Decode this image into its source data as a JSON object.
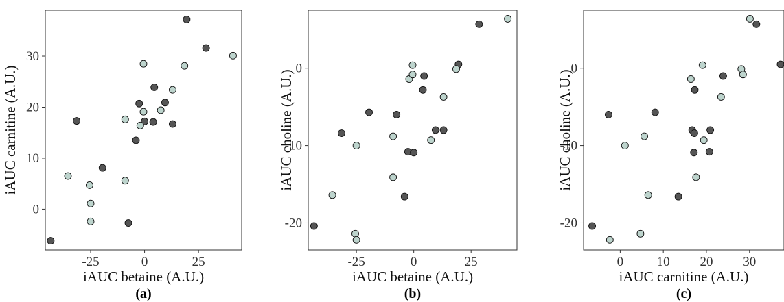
{
  "chart_data": [
    {
      "type": "scatter",
      "panel_label": "(a)",
      "xlabel": "iAUC betaine (A.U.)",
      "ylabel": "iAUC carnitine (A.U.)",
      "xlim": [
        -46,
        45
      ],
      "ylim": [
        -8,
        39
      ],
      "xticks": [
        -25,
        0,
        25
      ],
      "yticks": [
        0,
        10,
        20,
        30
      ],
      "xtick_labels": [
        "-25",
        "0",
        "25"
      ],
      "ytick_labels": [
        "0",
        "10",
        "20",
        "30"
      ],
      "grid": false,
      "legend": "none",
      "series": [
        {
          "color": "#555555",
          "points": [
            [
              -43.5,
              -6.2
            ],
            [
              -31.5,
              17.3
            ],
            [
              -19.5,
              8.1
            ],
            [
              -7.5,
              -2.7
            ],
            [
              -4,
              13.5
            ],
            [
              -2.5,
              20.7
            ],
            [
              0,
              17.2
            ],
            [
              4,
              17.1
            ],
            [
              4.5,
              23.9
            ],
            [
              9.5,
              20.9
            ],
            [
              13,
              16.7
            ],
            [
              19.5,
              37.2
            ],
            [
              28.5,
              31.6
            ]
          ]
        },
        {
          "color": "#bdd4cd",
          "points": [
            [
              -35.5,
              6.5
            ],
            [
              -25.5,
              4.7
            ],
            [
              -25,
              1.1
            ],
            [
              -25,
              -2.4
            ],
            [
              -9,
              5.6
            ],
            [
              -9,
              17.6
            ],
            [
              -2,
              16.4
            ],
            [
              -0.5,
              28.5
            ],
            [
              -0.5,
              19.1
            ],
            [
              7.5,
              19.4
            ],
            [
              13,
              23.4
            ],
            [
              18.5,
              28.1
            ],
            [
              41,
              30.1
            ]
          ]
        }
      ]
    },
    {
      "type": "scatter",
      "panel_label": "(b)",
      "xlabel": "iAUC betaine (A.U.)",
      "ylabel": "iAUC choline (A.U.)",
      "xlim": [
        -46,
        45
      ],
      "ylim": [
        -23.5,
        7.5
      ],
      "xticks": [
        -25,
        0,
        25
      ],
      "yticks": [
        -20,
        -10,
        0
      ],
      "xtick_labels": [
        "-25",
        "0",
        "25"
      ],
      "ytick_labels": [
        "-20",
        "-10",
        "0"
      ],
      "grid": false,
      "legend": "none",
      "series": [
        {
          "color": "#555555",
          "points": [
            [
              -43.5,
              -20.4
            ],
            [
              -31.5,
              -8.4
            ],
            [
              -19.5,
              -5.7
            ],
            [
              -7.5,
              -6
            ],
            [
              -4,
              -16.6
            ],
            [
              -2.5,
              -10.8
            ],
            [
              0,
              -10.9
            ],
            [
              4,
              -2.8
            ],
            [
              4.5,
              -1
            ],
            [
              9.5,
              -8
            ],
            [
              13,
              -8
            ],
            [
              19.5,
              0.5
            ],
            [
              28.5,
              5.7
            ]
          ]
        },
        {
          "color": "#bdd4cd",
          "points": [
            [
              -35.5,
              -16.4
            ],
            [
              -25.5,
              -21.4
            ],
            [
              -25,
              -22.2
            ],
            [
              -25,
              -10
            ],
            [
              -9,
              -14.1
            ],
            [
              -9,
              -8.8
            ],
            [
              -2,
              -1.4
            ],
            [
              -0.5,
              0.4
            ],
            [
              -0.5,
              -0.8
            ],
            [
              7.5,
              -9.3
            ],
            [
              13,
              -3.7
            ],
            [
              18.5,
              -0.1
            ],
            [
              41,
              6.4
            ]
          ]
        }
      ]
    },
    {
      "type": "scatter",
      "panel_label": "(c)",
      "xlabel": "iAUC carnitine (A.U.)",
      "ylabel": "iAUC choline (A.U.)",
      "xlim": [
        -8.5,
        38
      ],
      "ylim": [
        -23.5,
        7.5
      ],
      "xticks": [
        0,
        10,
        20,
        30
      ],
      "yticks": [
        -20,
        -10,
        0
      ],
      "xtick_labels": [
        "0",
        "10",
        "20",
        "30"
      ],
      "ytick_labels": [
        "-20",
        "-10",
        "0"
      ],
      "grid": false,
      "legend": "none",
      "series": [
        {
          "color": "#555555",
          "points": [
            [
              -6.5,
              -20.4
            ],
            [
              -2.7,
              -6
            ],
            [
              8.1,
              -5.7
            ],
            [
              13.5,
              -16.6
            ],
            [
              16.7,
              -8
            ],
            [
              17.1,
              -10.9
            ],
            [
              17.2,
              -8.4
            ],
            [
              17.3,
              -2.8
            ],
            [
              20.7,
              -10.8
            ],
            [
              20.9,
              -8
            ],
            [
              23.9,
              -1
            ],
            [
              31.6,
              5.7
            ],
            [
              37.2,
              0.5
            ]
          ]
        },
        {
          "color": "#bdd4cd",
          "points": [
            [
              -2.4,
              -22.2
            ],
            [
              1.1,
              -10
            ],
            [
              4.7,
              -21.4
            ],
            [
              5.6,
              -8.8
            ],
            [
              6.5,
              -16.4
            ],
            [
              16.4,
              -1.4
            ],
            [
              17.6,
              -14.1
            ],
            [
              19.1,
              0.4
            ],
            [
              19.4,
              -9.3
            ],
            [
              23.4,
              -3.7
            ],
            [
              28.1,
              -0.1
            ],
            [
              28.5,
              -0.8
            ],
            [
              30.1,
              6.4
            ]
          ]
        }
      ]
    }
  ]
}
